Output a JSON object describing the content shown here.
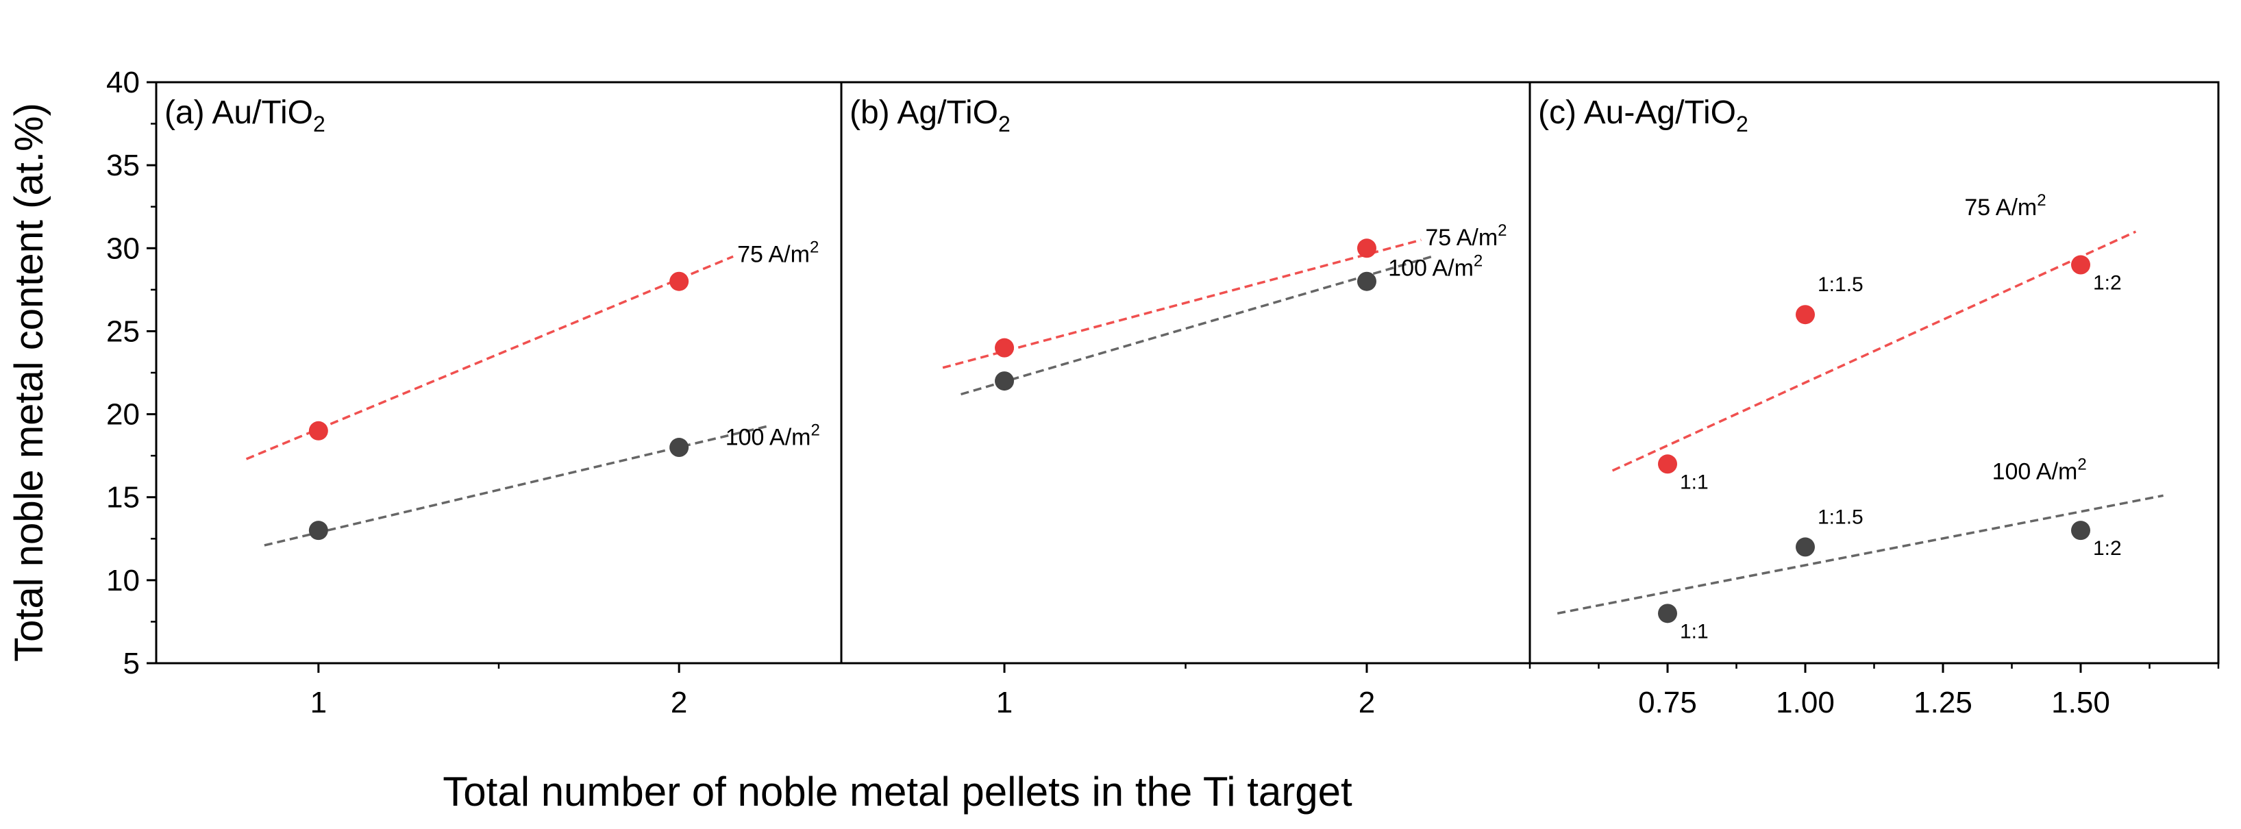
{
  "ylabel": "Total noble metal content (at.%)",
  "xlabel": "Total number of noble metal pellets in the Ti target",
  "y_axis": {
    "ylim": [
      5,
      40
    ],
    "ticks": [
      5,
      10,
      15,
      20,
      25,
      30,
      35,
      40
    ]
  },
  "colors": {
    "red": "#e8393a",
    "gray": "#454545",
    "red_line": "#f0504f",
    "gray_line": "#666666"
  },
  "chart_data": [
    {
      "type": "scatter",
      "panel": "a",
      "title": "(a) Au/TiO",
      "title_sub": "2",
      "xlim": [
        0.55,
        2.45
      ],
      "x_ticks": [
        "1",
        "2"
      ],
      "x_tick_values": [
        1,
        2
      ],
      "series": [
        {
          "name": "75 A/m²",
          "label": "75 A/m",
          "label_sup": "2",
          "color": "red",
          "x": [
            1,
            2
          ],
          "y": [
            19,
            28
          ],
          "fit": {
            "x": [
              0.8,
              2.15
            ],
            "y": [
              17.3,
              29.5
            ]
          }
        },
        {
          "name": "100 A/m²",
          "label": "100 A/m",
          "label_sup": "2",
          "color": "gray",
          "x": [
            1,
            2
          ],
          "y": [
            13,
            18
          ],
          "fit": {
            "x": [
              0.85,
              2.25
            ],
            "y": [
              12.1,
              19.3
            ]
          }
        }
      ]
    },
    {
      "type": "scatter",
      "panel": "b",
      "title": "(b) Ag/TiO",
      "title_sub": "2",
      "xlim": [
        0.55,
        2.45
      ],
      "x_ticks": [
        "1",
        "2"
      ],
      "x_tick_values": [
        1,
        2
      ],
      "series": [
        {
          "name": "75 A/m²",
          "label": "75 A/m",
          "label_sup": "2",
          "color": "red",
          "x": [
            1,
            2
          ],
          "y": [
            24,
            30
          ],
          "fit": {
            "x": [
              0.83,
              2.15
            ],
            "y": [
              22.8,
              30.5
            ]
          }
        },
        {
          "name": "100 A/m²",
          "label": "100 A/m",
          "label_sup": "2",
          "color": "gray",
          "x": [
            1,
            2
          ],
          "y": [
            22,
            28
          ],
          "fit": {
            "x": [
              0.88,
              2.18
            ],
            "y": [
              21.2,
              29.5
            ]
          }
        }
      ]
    },
    {
      "type": "scatter",
      "panel": "c",
      "title": "(c) Au-Ag/TiO",
      "title_sub": "2",
      "xlim": [
        0.5,
        1.75
      ],
      "x_ticks": [
        "0.75",
        "1.00",
        "1.25",
        "1.50"
      ],
      "x_tick_values": [
        0.75,
        1.0,
        1.25,
        1.5
      ],
      "series": [
        {
          "name": "75 A/m²",
          "label": "75 A/m",
          "label_sup": "2",
          "color": "red",
          "x": [
            0.75,
            1.0,
            1.5
          ],
          "y": [
            17,
            26,
            29
          ],
          "point_labels": [
            "1:1",
            "1:1.5",
            "1:2"
          ],
          "fit": {
            "x": [
              0.65,
              1.6
            ],
            "y": [
              16.6,
              31.0
            ]
          }
        },
        {
          "name": "100 A/m²",
          "label": "100 A/m",
          "label_sup": "2",
          "color": "gray",
          "x": [
            0.75,
            1.0,
            1.5
          ],
          "y": [
            8,
            12,
            13
          ],
          "point_labels": [
            "1:1",
            "1:1.5",
            "1:2"
          ],
          "fit": {
            "x": [
              0.55,
              1.65
            ],
            "y": [
              8.0,
              15.1
            ]
          }
        }
      ]
    }
  ]
}
